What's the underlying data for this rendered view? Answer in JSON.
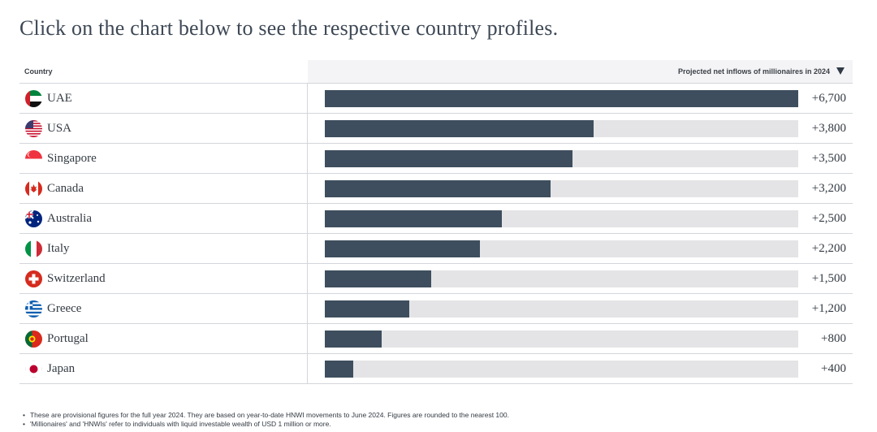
{
  "heading": "Click on the chart below to see the respective country profiles.",
  "table": {
    "country_header": "Country",
    "metric_header": "Projected net inflows of millionaires in 2024"
  },
  "chart_data": {
    "type": "bar",
    "orientation": "horizontal",
    "categories": [
      "UAE",
      "USA",
      "Singapore",
      "Canada",
      "Australia",
      "Italy",
      "Switzerland",
      "Greece",
      "Portugal",
      "Japan"
    ],
    "values": [
      6700,
      3800,
      3500,
      3200,
      2500,
      2200,
      1500,
      1200,
      800,
      400
    ],
    "value_labels": [
      "+6,700",
      "+3,800",
      "+3,500",
      "+3,200",
      "+2,500",
      "+2,200",
      "+1,500",
      "+1,200",
      "+800",
      "+400"
    ],
    "xlim": [
      0,
      6700
    ],
    "grid": false,
    "colors": {
      "bar": "#3e4e5e",
      "track": "#e4e4e6"
    }
  },
  "flags": [
    "uae-flag-icon",
    "usa-flag-icon",
    "singapore-flag-icon",
    "canada-flag-icon",
    "australia-flag-icon",
    "italy-flag-icon",
    "switzerland-flag-icon",
    "greece-flag-icon",
    "portugal-flag-icon",
    "japan-flag-icon"
  ],
  "notes": [
    "These are provisional figures for the full year 2024. They are based on year-to-date HNWI movements to June 2024. Figures are rounded to the nearest 100.",
    "'Millionaires' and 'HNWIs' refer to individuals with liquid investable wealth of USD 1 million or more."
  ]
}
